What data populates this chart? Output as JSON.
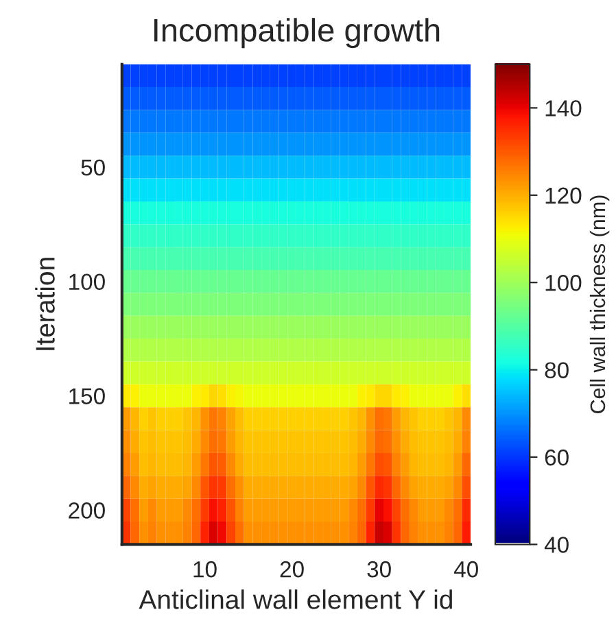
{
  "chart_data": {
    "type": "heatmap",
    "title": "Incompatible growth",
    "xlabel": "Anticlinal wall element Y id",
    "ylabel": "Iteration",
    "clabel": "Cell wall thickness (nm)",
    "categories": [
      null,
      null,
      null,
      null,
      null,
      null,
      null,
      null,
      null,
      "10",
      null,
      null,
      null,
      null,
      null,
      null,
      null,
      null,
      null,
      "20",
      null,
      null,
      null,
      null,
      null,
      null,
      null,
      null,
      null,
      "30",
      null,
      null,
      null,
      null,
      null,
      null,
      null,
      null,
      null,
      "40"
    ],
    "y_categories": [
      null,
      null,
      null,
      null,
      "50",
      null,
      null,
      null,
      null,
      "100",
      null,
      null,
      null,
      null,
      "150",
      null,
      null,
      null,
      null,
      "200",
      null
    ],
    "clim": [
      40,
      150
    ],
    "cticks": [
      40,
      60,
      80,
      100,
      120,
      140
    ],
    "cells": [
      [
        61,
        61,
        61,
        61,
        61,
        61,
        61,
        61,
        61,
        61,
        61,
        61,
        61,
        61,
        61,
        61,
        61,
        61,
        61,
        61,
        61,
        61,
        61,
        61,
        61,
        61,
        61,
        61,
        61,
        61,
        61,
        61,
        61,
        61,
        61,
        61,
        61,
        61,
        61,
        61
      ],
      [
        64,
        64,
        64,
        64,
        64,
        64,
        64,
        64,
        64,
        64,
        64,
        64,
        64,
        64,
        64,
        64,
        64,
        64,
        64,
        64,
        64,
        64,
        64,
        64,
        64,
        64,
        64,
        64,
        64,
        64,
        64,
        64,
        64,
        64,
        64,
        64,
        64,
        64,
        64,
        64
      ],
      [
        67,
        67,
        67,
        67,
        67,
        67,
        67,
        67,
        67,
        67,
        67,
        67,
        67,
        67,
        67,
        67,
        67,
        67,
        67,
        67,
        67,
        67,
        67,
        67,
        67,
        67,
        67,
        67,
        67,
        67,
        67,
        67,
        67,
        67,
        67,
        67,
        67,
        67,
        67,
        67
      ],
      [
        70,
        70,
        70,
        70,
        70,
        70,
        70,
        70,
        70,
        70,
        70,
        70,
        70,
        70,
        70,
        70,
        70,
        70,
        70,
        70,
        70,
        70,
        70,
        70,
        70,
        70,
        70,
        70,
        70,
        70,
        70,
        70,
        70,
        70,
        70,
        70,
        70,
        70,
        70,
        70
      ],
      [
        74,
        74,
        74,
        74,
        74,
        74,
        74,
        74,
        74,
        74,
        74,
        74,
        74,
        74,
        74,
        74,
        74,
        74,
        74,
        74,
        74,
        74,
        74,
        74,
        74,
        74,
        74,
        74,
        74,
        74,
        74,
        74,
        74,
        74,
        74,
        74,
        74,
        74,
        74,
        74
      ],
      [
        78,
        78,
        78,
        78,
        78,
        78,
        78,
        78,
        78,
        78,
        78,
        78,
        78,
        78,
        78,
        78,
        78,
        78,
        78,
        78,
        78,
        78,
        78,
        78,
        78,
        78,
        78,
        78,
        78,
        78,
        78,
        78,
        78,
        78,
        78,
        78,
        78,
        78,
        78,
        78
      ],
      [
        82,
        82,
        82,
        82,
        82,
        82,
        82,
        82,
        82,
        82,
        82,
        82,
        82,
        82,
        82,
        82,
        82,
        82,
        82,
        82,
        82,
        82,
        82,
        82,
        82,
        82,
        82,
        82,
        82,
        82,
        82,
        82,
        82,
        82,
        82,
        82,
        82,
        82,
        82,
        82
      ],
      [
        85,
        85,
        85,
        85,
        85,
        85,
        85,
        85,
        85,
        85,
        85,
        85,
        85,
        85,
        85,
        85,
        85,
        85,
        85,
        85,
        85,
        85,
        85,
        85,
        85,
        85,
        85,
        85,
        85,
        85,
        85,
        85,
        85,
        85,
        85,
        85,
        85,
        85,
        85,
        85
      ],
      [
        88,
        88,
        88,
        88,
        88,
        88,
        88,
        88,
        88,
        88,
        88,
        88,
        88,
        88,
        88,
        88,
        88,
        88,
        88,
        88,
        88,
        88,
        88,
        88,
        88,
        88,
        88,
        88,
        88,
        88,
        88,
        88,
        88,
        88,
        88,
        88,
        88,
        88,
        88,
        88
      ],
      [
        92,
        92,
        92,
        92,
        92,
        92,
        92,
        92,
        92,
        92,
        92,
        92,
        92,
        92,
        92,
        92,
        92,
        92,
        92,
        92,
        92,
        92,
        92,
        92,
        92,
        92,
        92,
        92,
        92,
        92,
        92,
        92,
        92,
        92,
        92,
        92,
        92,
        92,
        92,
        92
      ],
      [
        95,
        95,
        95,
        95,
        95,
        95,
        95,
        95,
        95,
        95,
        95,
        95,
        95,
        95,
        95,
        95,
        95,
        95,
        95,
        95,
        95,
        95,
        95,
        95,
        95,
        95,
        95,
        95,
        95,
        95,
        95,
        95,
        95,
        95,
        95,
        95,
        95,
        95,
        95,
        95
      ],
      [
        99,
        99,
        99,
        99,
        99,
        99,
        99,
        99,
        99,
        99,
        99,
        99,
        99,
        99,
        99,
        99,
        99,
        99,
        99,
        99,
        99,
        99,
        99,
        99,
        99,
        99,
        99,
        99,
        99,
        99,
        99,
        99,
        99,
        99,
        99,
        99,
        99,
        99,
        99,
        99
      ],
      [
        102,
        102,
        102,
        102,
        102,
        102,
        102,
        102,
        102,
        102,
        102,
        102,
        102,
        102,
        102,
        102,
        102,
        102,
        102,
        102,
        102,
        102,
        102,
        102,
        102,
        102,
        102,
        102,
        102,
        102,
        102,
        102,
        102,
        102,
        102,
        102,
        102,
        102,
        102,
        102
      ],
      [
        106,
        106,
        106,
        106,
        106,
        106,
        106,
        106,
        106,
        106,
        106,
        106,
        106,
        106,
        106,
        106,
        106,
        106,
        106,
        106,
        106,
        106,
        106,
        106,
        106,
        106,
        106,
        106,
        106,
        106,
        106,
        106,
        106,
        106,
        106,
        106,
        106,
        106,
        106,
        106
      ],
      [
        113,
        112,
        110,
        110,
        110,
        110,
        110,
        110,
        112,
        113,
        115,
        114,
        112,
        111,
        110,
        110,
        110,
        110,
        110,
        110,
        110,
        110,
        110,
        110,
        110,
        110,
        110,
        112,
        113,
        115,
        115,
        113,
        112,
        110,
        110,
        110,
        110,
        110,
        112,
        114
      ],
      [
        122,
        119,
        116,
        117,
        116,
        116,
        116,
        117,
        119,
        123,
        126,
        125,
        121,
        118,
        116,
        116,
        116,
        116,
        116,
        116,
        116,
        116,
        116,
        116,
        116,
        116,
        117,
        119,
        123,
        127,
        126,
        122,
        119,
        117,
        116,
        116,
        116,
        117,
        119,
        124
      ],
      [
        123,
        120,
        117,
        118,
        117,
        117,
        117,
        118,
        120,
        124,
        127,
        126,
        122,
        119,
        117,
        117,
        117,
        117,
        117,
        117,
        117,
        117,
        117,
        117,
        117,
        117,
        118,
        120,
        124,
        128,
        127,
        123,
        120,
        118,
        117,
        117,
        117,
        118,
        120,
        125
      ],
      [
        125,
        122,
        118,
        119,
        118,
        118,
        118,
        119,
        122,
        126,
        130,
        129,
        124,
        120,
        118,
        118,
        118,
        118,
        118,
        118,
        118,
        118,
        118,
        118,
        118,
        118,
        119,
        122,
        126,
        131,
        130,
        125,
        122,
        119,
        118,
        118,
        118,
        119,
        122,
        128
      ],
      [
        128,
        124,
        120,
        121,
        120,
        120,
        120,
        121,
        124,
        130,
        134,
        133,
        127,
        123,
        120,
        120,
        120,
        120,
        120,
        120,
        120,
        120,
        120,
        120,
        120,
        120,
        121,
        124,
        130,
        135,
        134,
        128,
        124,
        121,
        120,
        120,
        120,
        121,
        124,
        131
      ],
      [
        132,
        127,
        122,
        124,
        122,
        122,
        122,
        124,
        127,
        133,
        138,
        136,
        130,
        125,
        122,
        122,
        122,
        122,
        122,
        122,
        122,
        122,
        122,
        122,
        122,
        122,
        124,
        127,
        133,
        140,
        138,
        132,
        127,
        124,
        122,
        122,
        122,
        124,
        127,
        135
      ],
      [
        134,
        128,
        123,
        125,
        123,
        123,
        123,
        125,
        128,
        136,
        141,
        139,
        132,
        127,
        123,
        123,
        123,
        123,
        123,
        123,
        123,
        123,
        123,
        123,
        123,
        123,
        125,
        128,
        136,
        143,
        141,
        134,
        128,
        125,
        123,
        123,
        123,
        125,
        128,
        137
      ]
    ]
  }
}
